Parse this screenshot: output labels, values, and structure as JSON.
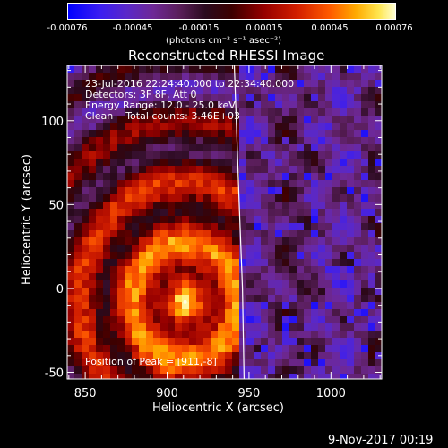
{
  "colorbar": {
    "tick_labels": [
      "-0.00076",
      "-0.00045",
      "-0.00015",
      "0.00015",
      "0.00045",
      "0.00076"
    ],
    "unit_label": "(photons cm⁻² s⁻¹ asec⁻²)"
  },
  "plot": {
    "title": "Reconstructed RHESSI Image",
    "annotations": [
      "23-Jul-2016 22:24:40.000 to 22:34:40.000",
      "Detectors: 3F 8F, Att 0",
      "Energy Range: 12.0 - 25.0 keV",
      "Clean    Total counts: 3.46E+03"
    ],
    "peak_label": "Position of Peak = [911,-8]"
  },
  "chart_data": {
    "type": "heatmap",
    "title": "Reconstructed RHESSI Image",
    "xlabel": "Heliocentric X (arcsec)",
    "ylabel": "Heliocentric Y (arcsec)",
    "xlim": [
      839,
      1031
    ],
    "ylim": [
      -54,
      133
    ],
    "x_ticks": [
      850,
      900,
      950,
      1000
    ],
    "y_ticks": [
      -50,
      0,
      50,
      100
    ],
    "colorbar_range": [
      -0.00076,
      0.00076
    ],
    "colorbar_ticks": [
      -0.00076,
      -0.00045,
      -0.00015,
      0.00015,
      0.00045,
      0.00076
    ],
    "peak_position": [
      911,
      -8
    ],
    "limb_line": [
      [
        941,
        133
      ],
      [
        944,
        50
      ],
      [
        946,
        0
      ],
      [
        947,
        -54
      ]
    ]
  },
  "timestamp": "9-Nov-2017 00:19"
}
